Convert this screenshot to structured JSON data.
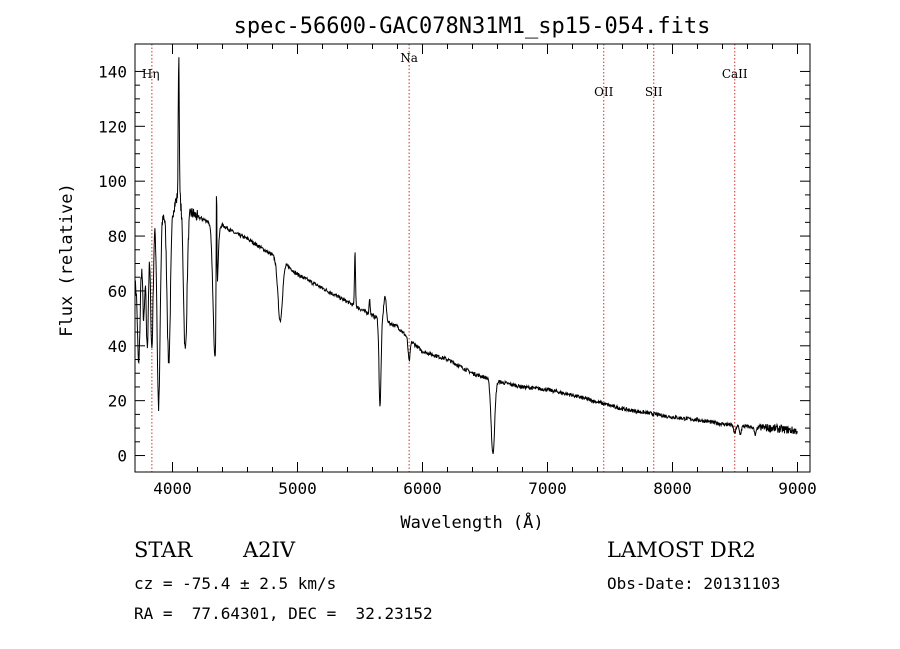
{
  "chart_data": {
    "type": "line",
    "title": "spec-56600-GAC078N31M1_sp15-054.fits",
    "xlabel": "Wavelength (Å)",
    "ylabel": "Flux (relative)",
    "xlim": [
      3700,
      9100
    ],
    "ylim": [
      -6,
      150
    ],
    "xticks": [
      4000,
      5000,
      6000,
      7000,
      8000,
      9000
    ],
    "yticks": [
      0,
      20,
      40,
      60,
      80,
      100,
      120,
      140
    ],
    "grid": false,
    "line_color": "#000000",
    "marker_color": "#cc3333",
    "line_markers": [
      {
        "label": "Hη",
        "wavelength": 3835
      },
      {
        "label": "Na",
        "wavelength": 5893
      },
      {
        "label": "OII",
        "wavelength": 7450
      },
      {
        "label": "SII",
        "wavelength": 7850
      },
      {
        "label": "CaII",
        "wavelength": 8498
      }
    ],
    "continuum": [
      [
        3700,
        62
      ],
      [
        3750,
        72
      ],
      [
        3800,
        80
      ],
      [
        3850,
        86
      ],
      [
        3900,
        88
      ],
      [
        3950,
        88
      ],
      [
        4000,
        90
      ],
      [
        4050,
        95
      ],
      [
        4100,
        90
      ],
      [
        4200,
        87
      ],
      [
        4300,
        85
      ],
      [
        4400,
        84
      ],
      [
        4500,
        81
      ],
      [
        4600,
        79
      ],
      [
        4700,
        76
      ],
      [
        4800,
        73
      ],
      [
        4900,
        70
      ],
      [
        5000,
        66
      ],
      [
        5200,
        61
      ],
      [
        5400,
        56
      ],
      [
        5600,
        51
      ],
      [
        5800,
        47
      ],
      [
        5900,
        42
      ],
      [
        6000,
        38
      ],
      [
        6200,
        35
      ],
      [
        6400,
        30
      ],
      [
        6600,
        27
      ],
      [
        6800,
        25
      ],
      [
        7000,
        24
      ],
      [
        7200,
        22
      ],
      [
        7400,
        19.5
      ],
      [
        7600,
        17
      ],
      [
        7800,
        15.5
      ],
      [
        8000,
        14
      ],
      [
        8200,
        13
      ],
      [
        8400,
        11.5
      ],
      [
        8600,
        10.5
      ],
      [
        8800,
        10
      ],
      [
        8990,
        9
      ]
    ],
    "features": [
      {
        "center": 3730,
        "depth": -35,
        "width": 10
      },
      {
        "center": 3770,
        "depth": -26,
        "width": 8
      },
      {
        "center": 3798,
        "depth": -40,
        "width": 9
      },
      {
        "center": 3835,
        "depth": -45,
        "width": 10
      },
      {
        "center": 3889,
        "depth": -70,
        "width": 12
      },
      {
        "center": 3970,
        "depth": -55,
        "width": 13
      },
      {
        "center": 4050,
        "depth": 52,
        "width": 4
      },
      {
        "center": 4102,
        "depth": -52,
        "width": 14
      },
      {
        "center": 4340,
        "depth": -48,
        "width": 16
      },
      {
        "center": 4352,
        "depth": 50,
        "width": 3
      },
      {
        "center": 4861,
        "depth": -22,
        "width": 18
      },
      {
        "center": 5460,
        "depth": 20,
        "width": 4
      },
      {
        "center": 5577,
        "depth": 6,
        "width": 4
      },
      {
        "center": 5660,
        "depth": -32,
        "width": 8
      },
      {
        "center": 5700,
        "depth": 9,
        "width": 10
      },
      {
        "center": 5893,
        "depth": -8,
        "width": 8
      },
      {
        "center": 6563,
        "depth": -27,
        "width": 14
      },
      {
        "center": 8498,
        "depth": -3,
        "width": 8
      },
      {
        "center": 8542,
        "depth": -3,
        "width": 8
      },
      {
        "center": 8662,
        "depth": -3,
        "width": 8
      }
    ]
  },
  "info": {
    "object_type": "STAR",
    "spectral_class": "A2IV",
    "survey": "LAMOST DR2",
    "redshift": "cz = -75.4 ± 2.5 km/s",
    "obs_date": "Obs-Date: 20131103",
    "coords": "RA =  77.64301, DEC =  32.23152"
  }
}
